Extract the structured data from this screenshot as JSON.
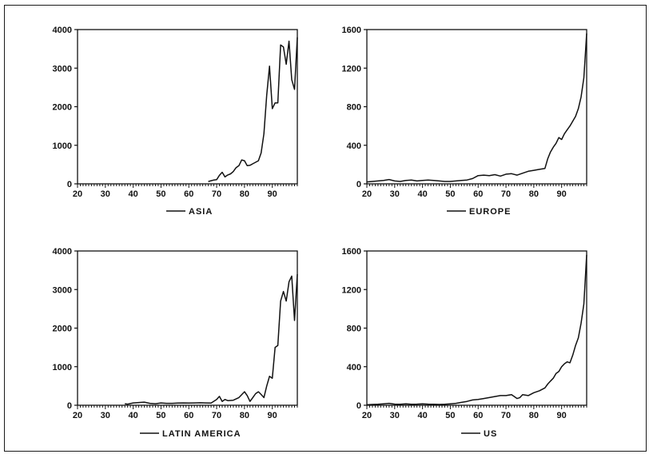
{
  "chart_data": [
    {
      "type": "line",
      "xlim": [
        20,
        99
      ],
      "ylim": [
        0,
        4000
      ],
      "xticks": [
        "20",
        "30",
        "40",
        "50",
        "60",
        "70",
        "80",
        "90"
      ],
      "yticks": [
        "0",
        "1000",
        "2000",
        "3000",
        "4000"
      ],
      "series": [
        {
          "name": "ASIA",
          "x": [
            67,
            68,
            69,
            70,
            71,
            72,
            73,
            74,
            75,
            76,
            77,
            78,
            79,
            80,
            81,
            82,
            83,
            84,
            85,
            86,
            87,
            88,
            89,
            90,
            91,
            92,
            93,
            94,
            95,
            96,
            97,
            98,
            99
          ],
          "y": [
            60,
            80,
            100,
            110,
            220,
            300,
            180,
            230,
            260,
            320,
            420,
            470,
            620,
            600,
            470,
            480,
            520,
            560,
            600,
            800,
            1300,
            2300,
            3050,
            1950,
            2100,
            2100,
            3600,
            3550,
            3100,
            3700,
            2700,
            2450,
            3800
          ]
        }
      ]
    },
    {
      "type": "line",
      "xlim": [
        20,
        99
      ],
      "ylim": [
        0,
        1600
      ],
      "xticks": [
        "20",
        "30",
        "40",
        "50",
        "60",
        "70",
        "80",
        "90"
      ],
      "yticks": [
        "0",
        "400",
        "800",
        "1200",
        "1600"
      ],
      "series": [
        {
          "name": "EUROPE",
          "x": [
            20,
            22,
            24,
            26,
            28,
            30,
            32,
            34,
            36,
            38,
            40,
            42,
            44,
            46,
            48,
            50,
            52,
            54,
            56,
            58,
            60,
            62,
            64,
            66,
            68,
            70,
            72,
            74,
            76,
            78,
            80,
            82,
            84,
            85,
            86,
            87,
            88,
            89,
            90,
            91,
            92,
            93,
            94,
            95,
            96,
            97,
            98,
            99
          ],
          "y": [
            20,
            25,
            30,
            35,
            45,
            30,
            25,
            35,
            40,
            30,
            35,
            40,
            35,
            30,
            25,
            25,
            30,
            35,
            40,
            55,
            85,
            90,
            85,
            95,
            80,
            100,
            105,
            90,
            110,
            130,
            140,
            150,
            160,
            260,
            330,
            380,
            420,
            480,
            460,
            520,
            560,
            600,
            650,
            700,
            780,
            900,
            1100,
            1560
          ]
        }
      ]
    },
    {
      "type": "line",
      "xlim": [
        20,
        99
      ],
      "ylim": [
        0,
        4000
      ],
      "xticks": [
        "20",
        "30",
        "40",
        "50",
        "60",
        "70",
        "80",
        "90"
      ],
      "yticks": [
        "0",
        "1000",
        "2000",
        "3000",
        "4000"
      ],
      "series": [
        {
          "name": "LATIN AMERICA",
          "x": [
            37,
            38,
            40,
            42,
            44,
            46,
            48,
            50,
            52,
            54,
            56,
            58,
            60,
            62,
            64,
            66,
            68,
            70,
            71,
            72,
            73,
            74,
            76,
            78,
            80,
            81,
            82,
            83,
            84,
            85,
            86,
            87,
            88,
            89,
            90,
            91,
            92,
            93,
            94,
            95,
            96,
            97,
            98,
            99
          ],
          "y": [
            40,
            30,
            60,
            70,
            80,
            50,
            40,
            60,
            50,
            50,
            55,
            60,
            55,
            60,
            65,
            60,
            55,
            150,
            230,
            100,
            150,
            120,
            130,
            200,
            350,
            250,
            100,
            200,
            300,
            350,
            280,
            200,
            500,
            750,
            700,
            1500,
            1550,
            2700,
            2950,
            2700,
            3200,
            3350,
            2200,
            3400
          ]
        }
      ]
    },
    {
      "type": "line",
      "xlim": [
        20,
        99
      ],
      "ylim": [
        0,
        1600
      ],
      "xticks": [
        "20",
        "30",
        "40",
        "50",
        "60",
        "70",
        "80",
        "90"
      ],
      "yticks": [
        "0",
        "400",
        "800",
        "1200",
        "1600"
      ],
      "series": [
        {
          "name": "US",
          "x": [
            20,
            22,
            24,
            26,
            28,
            30,
            32,
            34,
            36,
            38,
            40,
            42,
            44,
            46,
            48,
            50,
            52,
            54,
            56,
            58,
            60,
            62,
            64,
            66,
            68,
            70,
            72,
            74,
            75,
            76,
            78,
            80,
            82,
            84,
            85,
            86,
            87,
            88,
            89,
            90,
            91,
            92,
            93,
            94,
            95,
            96,
            97,
            98,
            99
          ],
          "y": [
            5,
            8,
            10,
            15,
            20,
            12,
            10,
            15,
            10,
            12,
            15,
            12,
            10,
            8,
            10,
            15,
            20,
            30,
            40,
            55,
            60,
            70,
            80,
            90,
            100,
            100,
            110,
            70,
            80,
            110,
            100,
            130,
            150,
            180,
            220,
            250,
            280,
            330,
            350,
            400,
            430,
            450,
            440,
            520,
            620,
            700,
            850,
            1050,
            1560
          ]
        }
      ]
    }
  ]
}
